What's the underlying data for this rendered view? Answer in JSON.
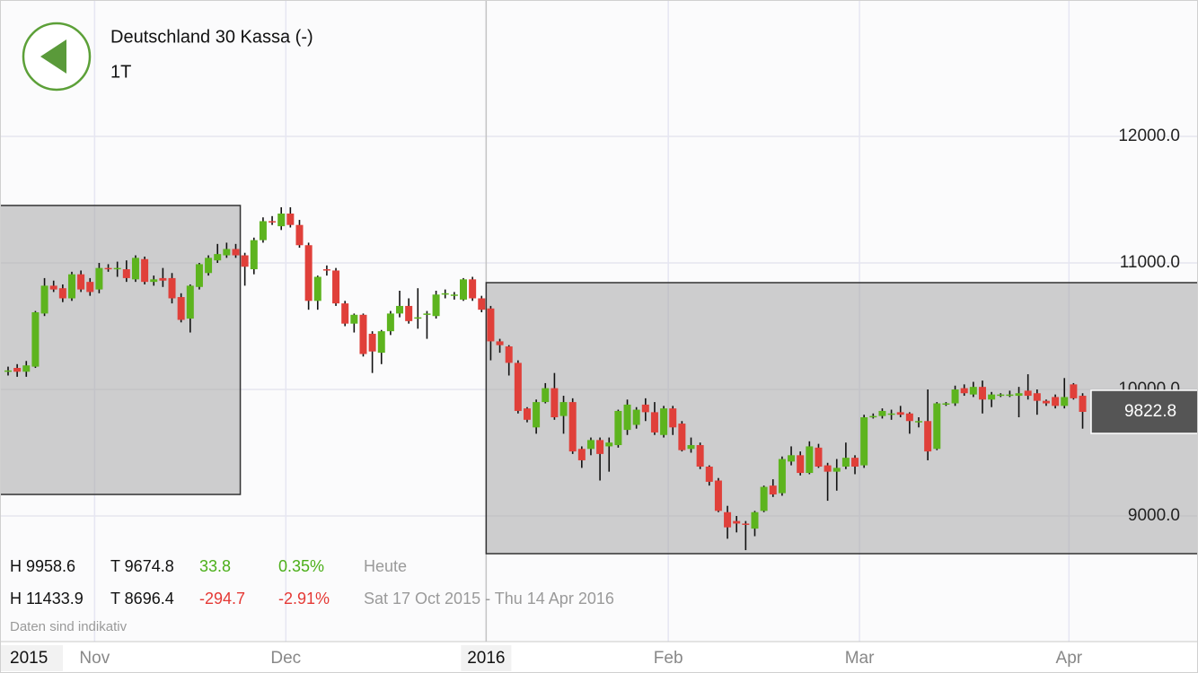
{
  "header": {
    "title": "Deutschland 30 Kassa (-)",
    "interval": "1T"
  },
  "stats": [
    {
      "high": "H 9958.6",
      "low": "T 9674.8",
      "change": "33.8",
      "change_pct": "0.35%",
      "period": "Heute",
      "color": "#4caf1a"
    },
    {
      "high": "H 11433.9",
      "low": "T 8696.4",
      "change": "-294.7",
      "change_pct": "-2.91%",
      "period": "Sat 17 Oct 2015 - Thu 14 Apr 2016",
      "color": "#e53935"
    }
  ],
  "footnote": "Daten sind indikativ",
  "chart_data": {
    "type": "candlestick",
    "x": [
      "2015-10-19",
      "2015-10-20",
      "2015-10-21",
      "2015-10-22",
      "2015-10-23",
      "2015-10-26",
      "2015-10-27",
      "2015-10-28",
      "2015-10-29",
      "2015-10-30",
      "2015-11-02",
      "2015-11-03",
      "2015-11-04",
      "2015-11-05",
      "2015-11-06",
      "2015-11-09",
      "2015-11-10",
      "2015-11-11",
      "2015-11-12",
      "2015-11-13",
      "2015-11-16",
      "2015-11-17",
      "2015-11-18",
      "2015-11-19",
      "2015-11-20",
      "2015-11-23",
      "2015-11-24",
      "2015-11-25",
      "2015-11-26",
      "2015-11-27",
      "2015-11-30",
      "2015-12-01",
      "2015-12-02",
      "2015-12-03",
      "2015-12-04",
      "2015-12-07",
      "2015-12-08",
      "2015-12-09",
      "2015-12-10",
      "2015-12-11",
      "2015-12-14",
      "2015-12-15",
      "2015-12-16",
      "2015-12-17",
      "2015-12-18",
      "2015-12-21",
      "2015-12-22",
      "2015-12-23",
      "2015-12-24",
      "2015-12-28",
      "2015-12-29",
      "2015-12-30",
      "2015-12-31",
      "2016-01-04",
      "2016-01-05",
      "2016-01-06",
      "2016-01-07",
      "2016-01-08",
      "2016-01-11",
      "2016-01-12",
      "2016-01-13",
      "2016-01-14",
      "2016-01-15",
      "2016-01-18",
      "2016-01-19",
      "2016-01-20",
      "2016-01-21",
      "2016-01-22",
      "2016-01-25",
      "2016-01-26",
      "2016-01-27",
      "2016-01-28",
      "2016-01-29",
      "2016-02-01",
      "2016-02-02",
      "2016-02-03",
      "2016-02-04",
      "2016-02-05",
      "2016-02-08",
      "2016-02-09",
      "2016-02-10",
      "2016-02-11",
      "2016-02-12",
      "2016-02-15",
      "2016-02-16",
      "2016-02-17",
      "2016-02-18",
      "2016-02-19",
      "2016-02-22",
      "2016-02-23",
      "2016-02-24",
      "2016-02-25",
      "2016-02-26",
      "2016-02-29",
      "2016-03-01",
      "2016-03-02",
      "2016-03-03",
      "2016-03-04",
      "2016-03-07",
      "2016-03-08",
      "2016-03-09",
      "2016-03-10",
      "2016-03-11",
      "2016-03-14",
      "2016-03-15",
      "2016-03-16",
      "2016-03-17",
      "2016-03-18",
      "2016-03-21",
      "2016-03-22",
      "2016-03-23",
      "2016-03-24",
      "2016-03-25",
      "2016-03-28",
      "2016-03-29",
      "2016-03-30",
      "2016-03-31",
      "2016-04-01",
      "2016-04-04"
    ],
    "open": [
      10140,
      10170,
      10140,
      10180,
      10600,
      10820,
      10800,
      10720,
      10910,
      10850,
      10790,
      10960,
      10950,
      10950,
      10870,
      11030,
      10850,
      10880,
      10880,
      10730,
      10560,
      10810,
      10920,
      11020,
      11060,
      11110,
      11060,
      10950,
      11180,
      11330,
      11290,
      11390,
      11300,
      11140,
      10700,
      10950,
      10940,
      10680,
      10520,
      10590,
      10440,
      10290,
      10460,
      10600,
      10660,
      10560,
      10590,
      10580,
      10750,
      10740,
      10710,
      10870,
      10720,
      10640,
      10380,
      10340,
      10210,
      9850,
      9700,
      9900,
      10010,
      9790,
      9900,
      9530,
      9530,
      9600,
      9550,
      9560,
      9680,
      9720,
      9880,
      9820,
      9640,
      9850,
      9730,
      9530,
      9560,
      9390,
      9280,
      9030,
      8960,
      8940,
      8900,
      9040,
      9240,
      9180,
      9430,
      9480,
      9340,
      9540,
      9400,
      9350,
      9390,
      9460,
      9400,
      9780,
      9790,
      9800,
      9820,
      9810,
      9740,
      9750,
      9530,
      9880,
      9890,
      10010,
      9960,
      10020,
      9920,
      9950,
      9955,
      9950,
      9990,
      9970,
      9910,
      9940,
      9870,
      10040,
      9950
    ],
    "high": [
      10180,
      10200,
      10225,
      10620,
      10880,
      10860,
      10830,
      10930,
      10940,
      10880,
      11000,
      10990,
      11010,
      11020,
      11060,
      11050,
      10900,
      10960,
      10920,
      10760,
      10830,
      11000,
      11060,
      11150,
      11160,
      11150,
      11080,
      11200,
      11360,
      11370,
      11440,
      11440,
      11340,
      11160,
      10900,
      10980,
      10960,
      10700,
      10600,
      10600,
      10460,
      10470,
      10620,
      10780,
      10720,
      10800,
      10620,
      10780,
      10790,
      10770,
      10880,
      10890,
      10740,
      10660,
      10400,
      10350,
      10230,
      9860,
      9920,
      10050,
      10130,
      9950,
      9930,
      9550,
      9620,
      9620,
      9620,
      9840,
      9920,
      9860,
      9930,
      9900,
      9870,
      9870,
      9750,
      9620,
      9580,
      9400,
      9300,
      9080,
      9000,
      8960,
      9040,
      9240,
      9290,
      9470,
      9550,
      9510,
      9590,
      9570,
      9420,
      9450,
      9580,
      9480,
      9800,
      9810,
      9850,
      9840,
      9870,
      9820,
      9780,
      10000,
      9900,
      9900,
      10030,
      10040,
      10060,
      10070,
      9980,
      9970,
      9990,
      10020,
      10120,
      10000,
      9920,
      9960,
      10090,
      10050,
      9970
    ],
    "low": [
      10110,
      10100,
      10100,
      10170,
      10580,
      10770,
      10690,
      10700,
      10770,
      10740,
      10760,
      10930,
      10890,
      10850,
      10850,
      10830,
      10820,
      10810,
      10680,
      10530,
      10450,
      10790,
      10900,
      11000,
      11040,
      11040,
      10820,
      10910,
      11160,
      11300,
      11260,
      11280,
      11120,
      10630,
      10630,
      10900,
      10660,
      10500,
      10450,
      10260,
      10130,
      10200,
      10430,
      10570,
      10520,
      10480,
      10400,
      10560,
      10720,
      10710,
      10700,
      10700,
      10610,
      10230,
      10290,
      10110,
      9810,
      9740,
      9650,
      9890,
      9760,
      9650,
      9490,
      9380,
      9480,
      9280,
      9350,
      9540,
      9640,
      9690,
      9750,
      9640,
      9620,
      9640,
      9510,
      9500,
      9370,
      9240,
      9030,
      8820,
      8870,
      8730,
      8840,
      9030,
      9150,
      9160,
      9400,
      9320,
      9330,
      9380,
      9120,
      9200,
      9370,
      9330,
      9380,
      9770,
      9770,
      9760,
      9780,
      9650,
      9700,
      9440,
      9520,
      9870,
      9870,
      9950,
      9940,
      9810,
      9860,
      9940,
      9940,
      9780,
      9920,
      9800,
      9870,
      9850,
      9850,
      9920,
      9690
    ],
    "close": [
      10150,
      10140,
      10190,
      10610,
      10820,
      10790,
      10720,
      10910,
      10790,
      10770,
      10960,
      10950,
      10960,
      10880,
      11040,
      10850,
      10870,
      10860,
      10720,
      10550,
      10820,
      10990,
      11040,
      11070,
      11110,
      11060,
      10970,
      11180,
      11330,
      11320,
      11390,
      11300,
      11140,
      10700,
      10890,
      10940,
      10680,
      10520,
      10590,
      10280,
      10300,
      10460,
      10600,
      10660,
      10540,
      10570,
      10600,
      10750,
      10760,
      10750,
      10870,
      10720,
      10630,
      10380,
      10350,
      10210,
      9830,
      9760,
      9900,
      10010,
      9780,
      9900,
      9510,
      9440,
      9600,
      9490,
      9580,
      9830,
      9880,
      9840,
      9820,
      9660,
      9850,
      9700,
      9520,
      9560,
      9390,
      9270,
      9040,
      8910,
      8940,
      8930,
      9030,
      9230,
      9170,
      9450,
      9480,
      9340,
      9550,
      9390,
      9350,
      9380,
      9460,
      9390,
      9780,
      9790,
      9830,
      9810,
      9800,
      9750,
      9750,
      9510,
      9890,
      9890,
      10000,
      9970,
      10020,
      9920,
      9960,
      9960,
      9960,
      9970,
      9950,
      9910,
      9890,
      9870,
      9940,
      9930,
      9822.8
    ],
    "up_color": "#5db41e",
    "down_color": "#e0403a",
    "wick_color": "#111111",
    "ylim": [
      8007,
      13078
    ],
    "yticks": [
      {
        "value": 9000,
        "label": "9000.0"
      },
      {
        "value": 10000,
        "label": "10000.0"
      },
      {
        "value": 11000,
        "label": "11000.0"
      },
      {
        "value": 12000,
        "label": "12000.0"
      }
    ],
    "xticks": [
      {
        "value": "2015-11-02",
        "label": "Nov"
      },
      {
        "value": "2015-12-01",
        "label": "Dec"
      },
      {
        "value": "2016-01-04",
        "label": "2016"
      },
      {
        "value": "2016-02-01",
        "label": "Feb"
      },
      {
        "value": "2016-03-01",
        "label": "Mar"
      },
      {
        "value": "2016-04-01",
        "label": "Apr"
      }
    ],
    "year_label": "2015",
    "grid": true,
    "boxes": [
      {
        "to": "2015-11-24",
        "top": 11454,
        "bottom": 9170
      },
      {
        "from": "2016-01-04",
        "top": 10844,
        "bottom": 8702
      }
    ],
    "last_price": 9822.8
  }
}
